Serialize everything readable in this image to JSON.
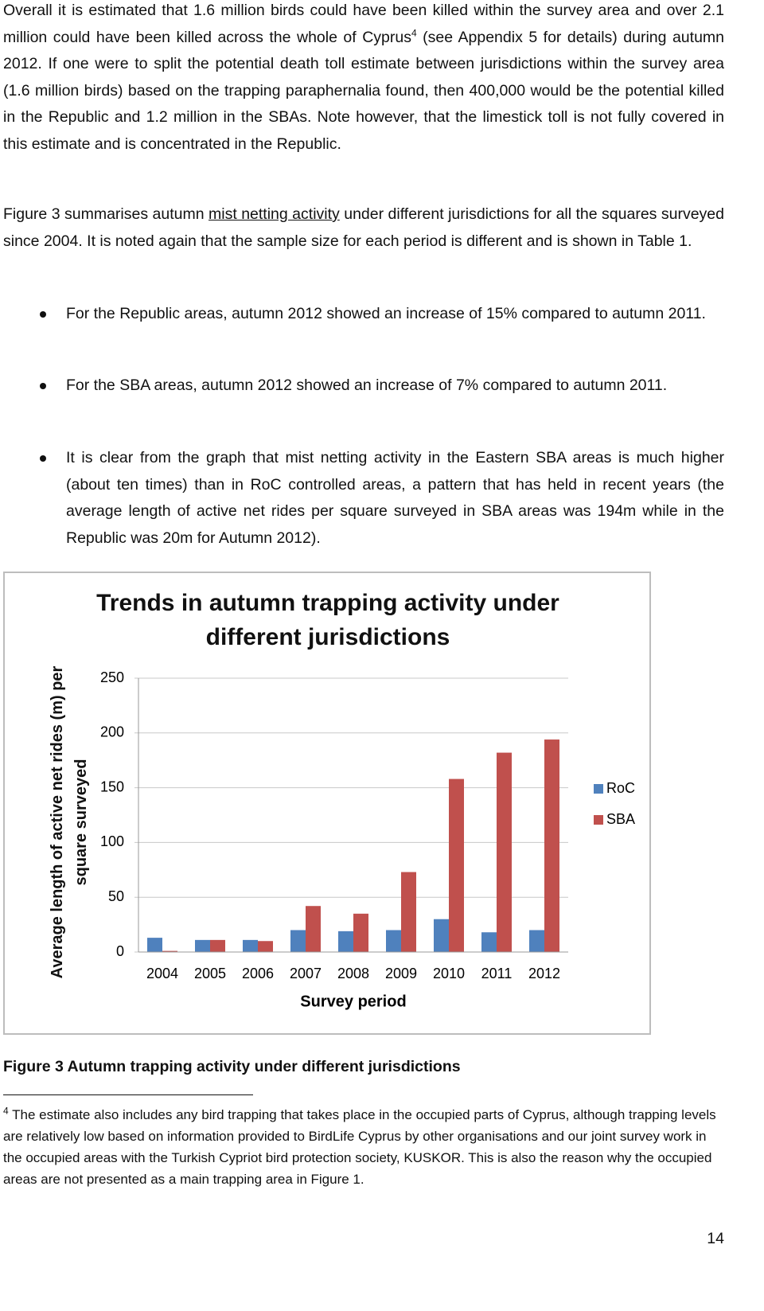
{
  "paragraph_1": {
    "before": "Overall it is estimated that 1.6 million birds could have been killed within the survey area and over 2.1 million could have been killed across the whole of Cyprus",
    "footnote_ref": "4",
    "after": "(see Appendix 5 for details) during autumn 2012. If one were to split the potential death toll estimate between jurisdictions within the survey area (1.6 million birds) based on the trapping paraphernalia found, then 400,000 would be the potential killed in the Republic and 1.2 million in the SBAs. Note however, that the limestick toll is not fully covered in this estimate and is concentrated in the Republic."
  },
  "paragraph_2": {
    "before": "Figure 3 summarises autumn",
    "underlined": "mist netting activity",
    "after": "under different jurisdictions for all the squares surveyed since 2004. It is noted again that the sample size for each period is different and is shown in Table 1."
  },
  "bullets": [
    "For the Republic areas, autumn 2012 showed an increase of 15% compared to autumn 2011.",
    "For the SBA areas, autumn 2012 showed an increase of 7% compared to autumn 2011.",
    "It is clear from the graph that mist netting activity in the Eastern SBA areas is much higher (about ten times) than in RoC controlled areas, a pattern that has held in recent years (the average length of active net rides per square surveyed in SBA areas was 194m while in the Republic was 20m for Autumn 2012)."
  ],
  "chart_data": {
    "type": "bar",
    "title": "Trends in autumn trapping activity under different jurisdictions",
    "x_label": "Survey period",
    "y_label": "Average length of active net rides (m) per square surveyed",
    "categories": [
      "2004",
      "2005",
      "2006",
      "2007",
      "2008",
      "2009",
      "2010",
      "2011",
      "2012"
    ],
    "series": [
      {
        "name": "RoC",
        "color": "#4f81bd",
        "values": [
          13,
          11,
          11,
          20,
          19,
          20,
          30,
          18,
          20
        ]
      },
      {
        "name": "SBA",
        "color": "#c0504d",
        "values": [
          1,
          11,
          10,
          42,
          35,
          73,
          158,
          182,
          194
        ]
      }
    ],
    "ylim": [
      0,
      250
    ],
    "yticks": [
      0,
      50,
      100,
      150,
      200,
      250
    ],
    "grid": true,
    "legend": "right"
  },
  "caption": "Figure 3 Autumn trapping activity under different jurisdictions",
  "footnote": {
    "marker": "4",
    "text": "The estimate also includes any bird trapping that takes place in the occupied parts of Cyprus, although trapping levels are relatively low based on information provided to BirdLife Cyprus by other organisations and our joint survey work in the occupied areas with the Turkish Cypriot bird protection society, KUSKOR. This is also the reason why the occupied areas are not presented as a main trapping area in Figure 1."
  },
  "page_number": "14"
}
